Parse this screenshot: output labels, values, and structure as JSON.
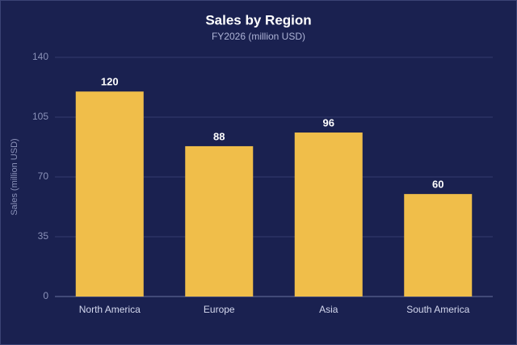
{
  "chart_data": {
    "type": "bar",
    "title": "Sales by Region",
    "subtitle": "FY2026 (million USD)",
    "y_label": "Sales (million USD)",
    "categories": [
      "North America",
      "Europe",
      "Asia",
      "South America"
    ],
    "values": [
      120,
      88,
      96,
      60
    ],
    "color": "#f0be4a",
    "ylim": [
      0,
      140
    ],
    "yticks": [
      0,
      35,
      70,
      105,
      140
    ],
    "grid": true
  }
}
